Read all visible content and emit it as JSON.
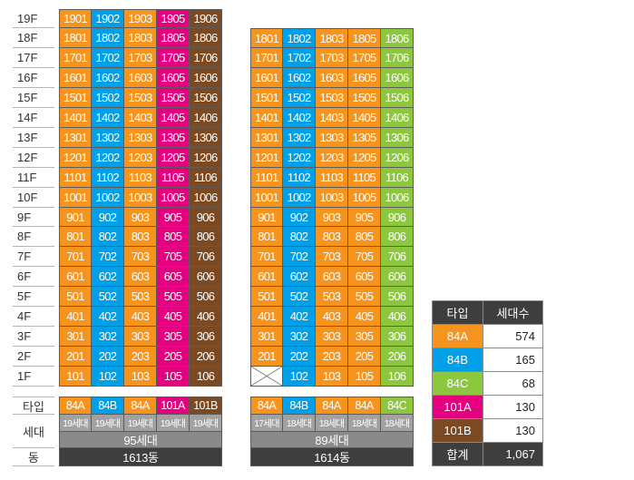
{
  "floor_labels": [
    "19F",
    "18F",
    "17F",
    "16F",
    "15F",
    "14F",
    "13F",
    "12F",
    "11F",
    "10F",
    "9F",
    "8F",
    "7F",
    "6F",
    "5F",
    "4F",
    "3F",
    "2F",
    "1F"
  ],
  "row_labels": {
    "type": "타입",
    "units": "세대",
    "building": "동"
  },
  "type_colors": {
    "84A": "#f7941d",
    "84B": "#00a0e9",
    "84C": "#8dc63f",
    "101A": "#e4007f",
    "101B": "#7b4a23"
  },
  "buildings": [
    {
      "name": "1613동",
      "total_units": "95세대",
      "columns": [
        {
          "type": "84A",
          "units": "19세대"
        },
        {
          "type": "84B",
          "units": "19세대"
        },
        {
          "type": "84A",
          "units": "19세대"
        },
        {
          "type": "101A",
          "units": "19세대"
        },
        {
          "type": "101B",
          "units": "19세대"
        }
      ],
      "floors": [
        [
          "1901",
          "1902",
          "1903",
          "1905",
          "1906"
        ],
        [
          "1801",
          "1802",
          "1803",
          "1805",
          "1806"
        ],
        [
          "1701",
          "1702",
          "1703",
          "1705",
          "1706"
        ],
        [
          "1601",
          "1602",
          "1603",
          "1605",
          "1606"
        ],
        [
          "1501",
          "1502",
          "1503",
          "1505",
          "1506"
        ],
        [
          "1401",
          "1402",
          "1403",
          "1405",
          "1406"
        ],
        [
          "1301",
          "1302",
          "1303",
          "1305",
          "1306"
        ],
        [
          "1201",
          "1202",
          "1203",
          "1205",
          "1206"
        ],
        [
          "1101",
          "1102",
          "1103",
          "1105",
          "1106"
        ],
        [
          "1001",
          "1002",
          "1003",
          "1005",
          "1006"
        ],
        [
          "901",
          "902",
          "903",
          "905",
          "906"
        ],
        [
          "801",
          "802",
          "803",
          "805",
          "806"
        ],
        [
          "701",
          "702",
          "703",
          "705",
          "706"
        ],
        [
          "601",
          "602",
          "603",
          "605",
          "606"
        ],
        [
          "501",
          "502",
          "503",
          "505",
          "506"
        ],
        [
          "401",
          "402",
          "403",
          "405",
          "406"
        ],
        [
          "301",
          "302",
          "303",
          "305",
          "306"
        ],
        [
          "201",
          "202",
          "203",
          "205",
          "206"
        ],
        [
          "101",
          "102",
          "103",
          "105",
          "106"
        ]
      ]
    },
    {
      "name": "1614동",
      "total_units": "89세대",
      "columns": [
        {
          "type": "84A",
          "units": "17세대"
        },
        {
          "type": "84B",
          "units": "18세대"
        },
        {
          "type": "84A",
          "units": "18세대"
        },
        {
          "type": "84A",
          "units": "18세대"
        },
        {
          "type": "84C",
          "units": "18세대"
        }
      ],
      "floors": [
        [
          "1801",
          "1802",
          "1803",
          "1805",
          "1806"
        ],
        [
          "1701",
          "1702",
          "1703",
          "1705",
          "1706"
        ],
        [
          "1601",
          "1602",
          "1603",
          "1605",
          "1606"
        ],
        [
          "1501",
          "1502",
          "1503",
          "1505",
          "1506"
        ],
        [
          "1401",
          "1402",
          "1403",
          "1405",
          "1406"
        ],
        [
          "1301",
          "1302",
          "1303",
          "1305",
          "1306"
        ],
        [
          "1201",
          "1202",
          "1203",
          "1205",
          "1206"
        ],
        [
          "1101",
          "1102",
          "1103",
          "1105",
          "1106"
        ],
        [
          "1001",
          "1002",
          "1003",
          "1005",
          "1006"
        ],
        [
          "901",
          "902",
          "903",
          "905",
          "906"
        ],
        [
          "801",
          "802",
          "803",
          "805",
          "806"
        ],
        [
          "701",
          "702",
          "703",
          "705",
          "706"
        ],
        [
          "601",
          "602",
          "603",
          "605",
          "606"
        ],
        [
          "501",
          "502",
          "503",
          "505",
          "506"
        ],
        [
          "401",
          "402",
          "403",
          "405",
          "406"
        ],
        [
          "301",
          "302",
          "303",
          "305",
          "306"
        ],
        [
          "201",
          "202",
          "203",
          "205",
          "206"
        ],
        [
          null,
          "102",
          "103",
          "105",
          "106"
        ]
      ]
    }
  ],
  "legend": {
    "header": {
      "type": "타입",
      "count": "세대수"
    },
    "rows": [
      {
        "type": "84A",
        "count": "574"
      },
      {
        "type": "84B",
        "count": "165"
      },
      {
        "type": "84C",
        "count": "68"
      },
      {
        "type": "101A",
        "count": "130"
      },
      {
        "type": "101B",
        "count": "130"
      }
    ],
    "total": {
      "label": "합계",
      "count": "1,067"
    }
  }
}
